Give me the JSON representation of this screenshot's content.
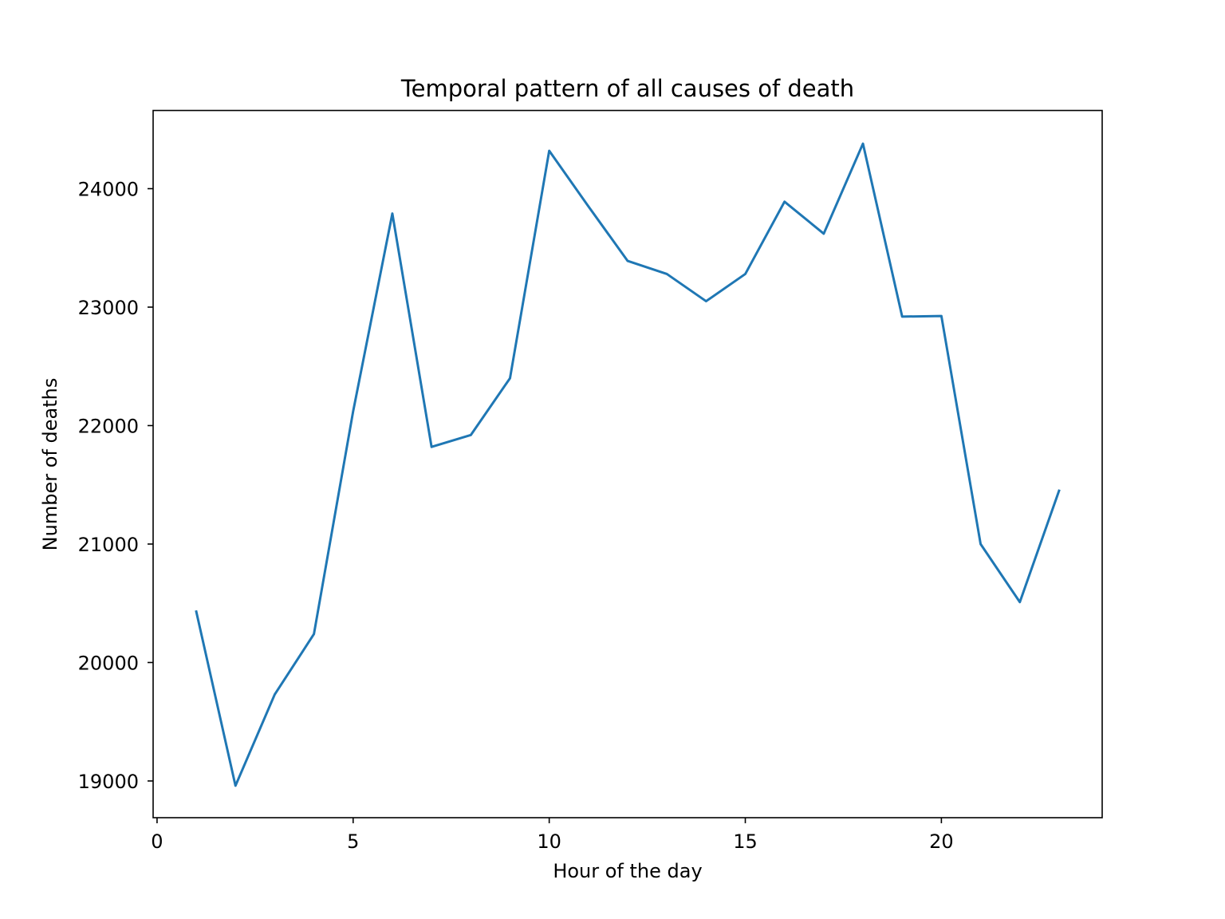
{
  "chart_data": {
    "type": "line",
    "title": "Temporal pattern of all causes of death",
    "xlabel": "Hour of the day",
    "ylabel": "Number of deaths",
    "xlim": [
      -0.1,
      24.1
    ],
    "ylim": [
      18690,
      24660
    ],
    "xticks": [
      0,
      5,
      10,
      15,
      20
    ],
    "yticks": [
      19000,
      20000,
      21000,
      22000,
      23000,
      24000
    ],
    "grid": false,
    "legend": "none",
    "series": [
      {
        "color": "#1f77b4",
        "x": [
          1,
          2,
          3,
          4,
          5,
          6,
          7,
          8,
          9,
          10,
          11,
          12,
          13,
          14,
          15,
          16,
          17,
          18,
          19,
          20,
          21,
          22,
          23
        ],
        "y": [
          20430,
          18960,
          19730,
          20240,
          22120,
          23790,
          21820,
          21920,
          22400,
          24320,
          23850,
          23390,
          23280,
          23050,
          23280,
          23890,
          23620,
          24380,
          22920,
          22925,
          21000,
          20510,
          21450
        ]
      }
    ]
  }
}
